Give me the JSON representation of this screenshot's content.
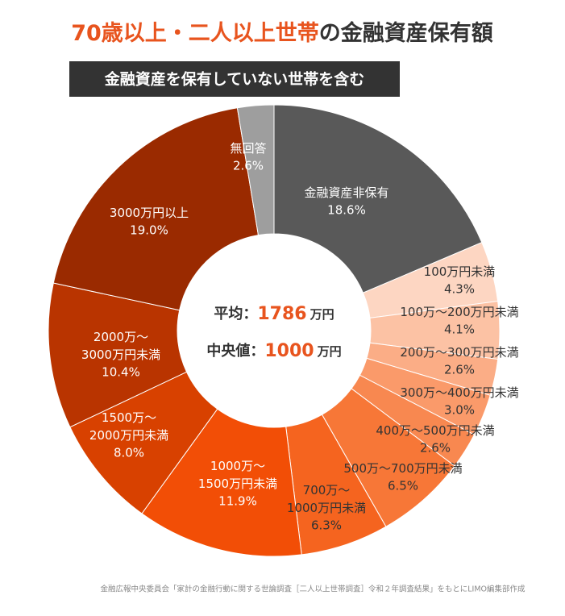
{
  "chart_data": {
    "type": "donut",
    "title_highlight": "70歳以上・二人以上世帯",
    "title_rest": "の金融資産保有額",
    "subtitle": "金融資産を保有していない世帯を含む",
    "categories": [
      "金融資産非保有",
      "100万円未満",
      "100万～200万円未満",
      "200万～300万円未満",
      "300万～400万円未満",
      "400万～500万円未満",
      "500万～700万円未満",
      "700万～\n1000万円未満",
      "1000万～\n1500万円未満",
      "1500万～\n2000万円未満",
      "2000万～\n3000万円未満",
      "3000万円以上",
      "無回答"
    ],
    "values": [
      18.6,
      4.3,
      4.1,
      2.6,
      3.0,
      2.6,
      6.5,
      6.3,
      11.9,
      8.0,
      10.4,
      19.0,
      2.6
    ],
    "value_labels": [
      "18.6%",
      "4.3%",
      "4.1%",
      "2.6%",
      "3.0%",
      "2.6%",
      "6.5%",
      "6.3%",
      "11.9%",
      "8.0%",
      "10.4%",
      "19.0%",
      "2.6%"
    ],
    "colors": [
      "#595959",
      "#fdd6c2",
      "#fcc2a4",
      "#fbad86",
      "#fa9a6a",
      "#f88850",
      "#f77737",
      "#f5641f",
      "#f24e06",
      "#d84100",
      "#b93400",
      "#9a2a00",
      "#9e9e9e"
    ],
    "center": {
      "mean_label": "平均：",
      "mean": 1786,
      "mean_unit": "万円",
      "median_label": "中央値：",
      "median": 1000,
      "median_unit": "万円"
    },
    "source": "金融広報中央委員会「家計の金融行動に関する世論調査［二人以上世帯調査］令和２年調査結果」をもとにLIMO編集部作成"
  }
}
